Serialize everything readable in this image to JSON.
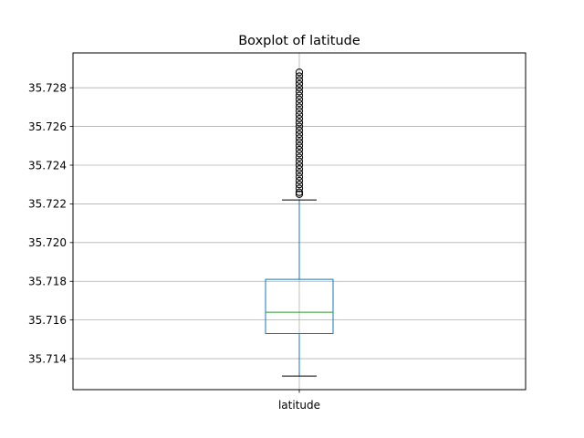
{
  "chart_data": {
    "type": "boxplot",
    "title": "Boxplot of latitude",
    "xlabel": "",
    "ylabel": "",
    "grid": true,
    "ylim": [
      35.7124,
      35.7298
    ],
    "yticks": [
      35.714,
      35.716,
      35.718,
      35.72,
      35.722,
      35.724,
      35.726,
      35.728
    ],
    "ytick_labels": [
      "35.714",
      "35.716",
      "35.718",
      "35.720",
      "35.722",
      "35.724",
      "35.726",
      "35.728"
    ],
    "categories": [
      "latitude"
    ],
    "series": [
      {
        "whisker_low": 35.7131,
        "q1": 35.7153,
        "median": 35.7164,
        "q3": 35.7181,
        "whisker_high": 35.7222,
        "outliers": [
          35.7225,
          35.7226,
          35.7228,
          35.723,
          35.7232,
          35.7234,
          35.7236,
          35.7238,
          35.724,
          35.7242,
          35.7244,
          35.7246,
          35.7248,
          35.725,
          35.7252,
          35.7254,
          35.7256,
          35.7258,
          35.726,
          35.7262,
          35.7264,
          35.7266,
          35.7268,
          35.727,
          35.7272,
          35.7274,
          35.7276,
          35.7278,
          35.728,
          35.7282,
          35.7284,
          35.7286,
          35.7288
        ]
      }
    ],
    "colors": {
      "box": "#1f77b4",
      "median": "#2ca02c",
      "whisker_cap": "#000000",
      "outlier_edge": "#000000",
      "grid": "#b0b0b0"
    }
  }
}
